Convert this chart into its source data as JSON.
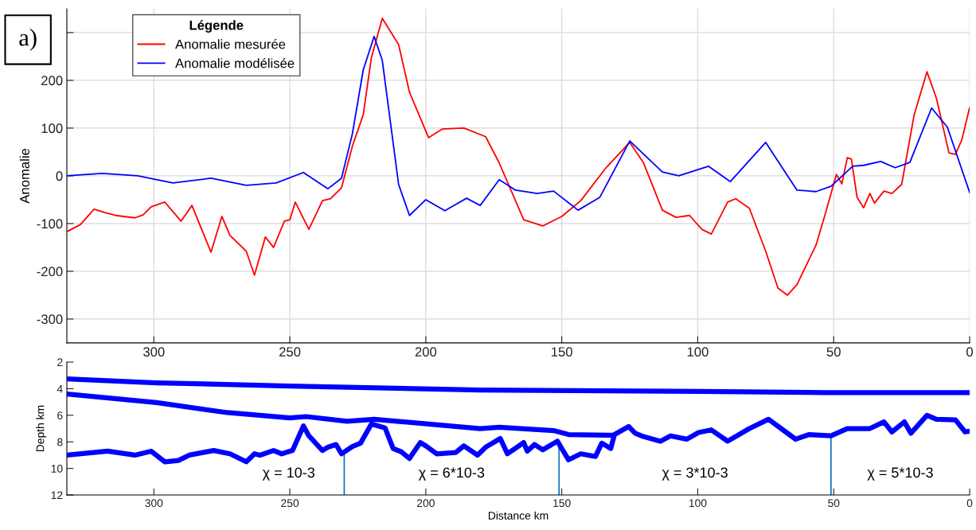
{
  "chart_data": [
    {
      "type": "line",
      "ylabel": "Anomalie",
      "legend_title": "Légende",
      "legend": "top left",
      "grid": true,
      "annotations": [
        "a)"
      ],
      "xlim": [
        332,
        0
      ],
      "xticks": [
        300,
        250,
        200,
        150,
        100,
        50,
        0
      ],
      "ylim": [
        -350,
        350
      ],
      "yticks": [
        -300,
        -200,
        -100,
        0,
        100,
        200,
        {
          "value": 300,
          "label": null
        }
      ],
      "series": [
        {
          "name": "Anomalie mesurée",
          "color": "#ff0000",
          "x": [
            332,
            327,
            322,
            318,
            314,
            307,
            304,
            301,
            296,
            290,
            286,
            279,
            275,
            272,
            266,
            263,
            259,
            256,
            252,
            250,
            248,
            243,
            238,
            235,
            231,
            227,
            223,
            220,
            216,
            210,
            206,
            199,
            194,
            186,
            178,
            173,
            164,
            157,
            150,
            143,
            134,
            125,
            120,
            113,
            108,
            103,
            98.5,
            95,
            89,
            86,
            81,
            75,
            70.5,
            67,
            63.5,
            56.5,
            53,
            49,
            47,
            45,
            43.5,
            41.4,
            39,
            36.7,
            35,
            31.5,
            28.6,
            25,
            20.4,
            15.7,
            12.2,
            7.6,
            5.2,
            2.9,
            0
          ],
          "values": [
            -117,
            -102,
            -70,
            -77,
            -83,
            -88,
            -82,
            -65,
            -55,
            -95,
            -62,
            -160,
            -85,
            -125,
            -158,
            -208,
            -128,
            -150,
            -95,
            -92,
            -55,
            -112,
            -52,
            -48,
            -25,
            62,
            128,
            248,
            330,
            275,
            175,
            80,
            98,
            100,
            82,
            27,
            -92,
            -105,
            -85,
            -52,
            15,
            70,
            28,
            -72,
            -87,
            -83,
            -112,
            -122,
            -55,
            -48,
            -68,
            -158,
            -235,
            -250,
            -228,
            -145,
            -78,
            3,
            -17,
            38,
            35,
            -45,
            -67,
            -37,
            -57,
            -32,
            -37,
            -18,
            128,
            218,
            162,
            48,
            45,
            75,
            143
          ]
        },
        {
          "name": "Anomalie modélisée",
          "color": "#0000ff",
          "x": [
            332,
            319,
            306,
            293,
            279,
            266,
            255,
            245,
            236,
            231,
            227,
            223,
            219,
            216,
            210,
            206,
            200,
            193,
            185,
            180,
            173,
            167,
            159,
            153,
            144,
            136,
            125,
            113,
            107,
            96,
            88,
            75,
            63.5,
            56.5,
            51,
            43,
            39,
            32.7,
            27.4,
            22,
            14,
            8.2,
            0
          ],
          "values": [
            0,
            5,
            0,
            -15,
            -5,
            -20,
            -15,
            7,
            -27,
            -5,
            88,
            222,
            292,
            242,
            -18,
            -83,
            -50,
            -73,
            -47,
            -62,
            -8,
            -30,
            -37,
            -32,
            -72,
            -45,
            73,
            8,
            0,
            20,
            -12,
            70,
            -30,
            -33,
            -22,
            20,
            22,
            30,
            17,
            28,
            142,
            102,
            -35
          ]
        }
      ]
    },
    {
      "type": "line",
      "xlabel": "Distance km",
      "ylabel": "Depth km",
      "grid": false,
      "xlim": [
        332,
        0
      ],
      "xticks": [
        300,
        250,
        200,
        150,
        100,
        50,
        0
      ],
      "ylim": [
        12,
        2
      ],
      "yticks": [
        2,
        4,
        6,
        8,
        10,
        12
      ],
      "annotations": [
        "χ = 10-3",
        "χ = 6*10-3",
        "χ = 3*10-3",
        "χ = 5*10-3"
      ],
      "ref_lines": [
        {
          "axis": "x",
          "value": 230,
          "color": "#0072bd"
        },
        {
          "axis": "x",
          "value": 151,
          "color": "#0072bd"
        },
        {
          "axis": "x",
          "value": 51,
          "color": "#0072bd"
        }
      ],
      "series": [
        {
          "color": "#0000ff",
          "x": [
            332,
            299,
            250,
            180,
            98.5,
            53,
            0
          ],
          "values": [
            3.26,
            3.56,
            3.8,
            4.1,
            4.2,
            4.3,
            4.3
          ]
        },
        {
          "color": "#0000ff",
          "x": [
            332,
            299,
            273,
            250,
            244,
            229,
            219,
            180,
            173,
            153,
            147.5,
            131
          ],
          "values": [
            4.4,
            5.05,
            5.8,
            6.2,
            6.1,
            6.45,
            6.3,
            7.0,
            6.9,
            7.15,
            7.45,
            7.5
          ]
        },
        {
          "color": "#0000ff",
          "x": [
            332,
            317,
            307,
            301,
            296,
            291,
            287,
            282,
            278,
            272,
            266,
            263,
            261,
            256,
            253,
            249,
            245,
            243,
            238,
            236,
            233,
            231,
            227,
            224,
            220,
            215,
            212,
            209,
            206,
            202,
            200,
            196,
            189,
            186,
            181,
            178,
            172.6,
            170,
            164,
            162.7,
            160,
            157,
            151.6,
            147.5,
            143,
            137.6,
            135.3,
            132,
            130.6,
            125.4,
            123,
            120,
            113.7,
            110,
            104,
            99.7,
            95,
            89,
            81,
            74,
            68,
            64,
            59,
            51,
            45,
            36.7,
            31.5,
            28.6,
            24,
            21.6,
            15.7,
            12.2,
            5.2,
            1.7,
            0
          ],
          "values": [
            9.0,
            8.7,
            9.0,
            8.7,
            9.5,
            9.4,
            9.0,
            8.8,
            8.65,
            8.9,
            9.5,
            8.9,
            9.0,
            8.65,
            8.9,
            8.65,
            6.8,
            7.55,
            8.65,
            8.4,
            8.2,
            8.9,
            8.35,
            8.1,
            6.65,
            6.95,
            8.5,
            8.75,
            9.25,
            8.05,
            8.3,
            8.9,
            8.8,
            8.3,
            9.0,
            8.4,
            7.75,
            8.9,
            8.05,
            8.7,
            8.2,
            8.6,
            7.95,
            9.35,
            8.9,
            9.1,
            8.1,
            8.5,
            7.45,
            6.85,
            7.35,
            7.6,
            7.95,
            7.55,
            7.8,
            7.3,
            7.1,
            7.95,
            7.0,
            6.3,
            7.2,
            7.8,
            7.45,
            7.55,
            7.0,
            7.0,
            6.5,
            7.25,
            6.5,
            7.35,
            6.0,
            6.3,
            6.35,
            7.25,
            7.2
          ]
        }
      ]
    }
  ]
}
